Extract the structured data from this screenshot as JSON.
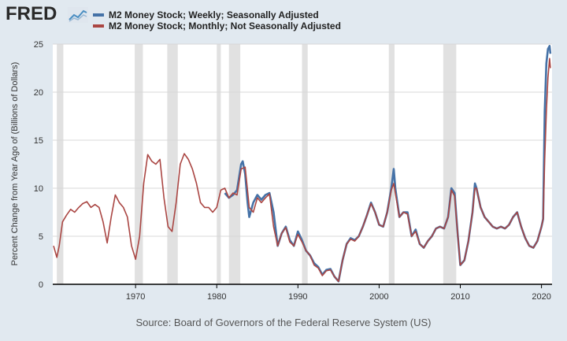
{
  "header": {
    "logo_text": "FRED"
  },
  "chart_data": {
    "type": "line",
    "title": "",
    "xlabel": "",
    "ylabel": "Percent Change from Year Ago of (Billions of Dollars)",
    "xlim": [
      1959.8,
      2021.3
    ],
    "ylim": [
      0,
      25
    ],
    "xticks": [
      1970,
      1980,
      1990,
      2000,
      2010,
      2020
    ],
    "yticks": [
      0,
      5,
      10,
      15,
      20,
      25
    ],
    "grid": true,
    "legend_position": "top-left",
    "recessions": [
      [
        1960.3,
        1961.1
      ],
      [
        1969.9,
        1970.9
      ],
      [
        1973.9,
        1975.2
      ],
      [
        1980.0,
        1980.5
      ],
      [
        1981.5,
        1982.9
      ],
      [
        1990.5,
        1991.2
      ],
      [
        2001.2,
        2001.9
      ],
      [
        2007.9,
        2009.5
      ]
    ],
    "series": [
      {
        "name": "M2 Money Stock; Weekly; Seasonally Adjusted",
        "color": "#4572a7",
        "x": [
          1981.0,
          1981.5,
          1982.0,
          1982.5,
          1983.0,
          1983.2,
          1983.5,
          1983.8,
          1984.0,
          1984.5,
          1985.0,
          1985.5,
          1986.0,
          1986.5,
          1987.0,
          1987.5,
          1988.0,
          1988.5,
          1989.0,
          1989.5,
          1990.0,
          1990.5,
          1991.0,
          1991.5,
          1992.0,
          1992.5,
          1993.0,
          1993.5,
          1994.0,
          1994.5,
          1995.0,
          1995.5,
          1996.0,
          1996.5,
          1997.0,
          1997.5,
          1998.0,
          1998.5,
          1999.0,
          1999.5,
          2000.0,
          2000.5,
          2001.0,
          2001.5,
          2001.8,
          2002.0,
          2002.5,
          2003.0,
          2003.5,
          2004.0,
          2004.5,
          2005.0,
          2005.5,
          2006.0,
          2006.5,
          2007.0,
          2007.5,
          2008.0,
          2008.5,
          2008.9,
          2009.3,
          2009.7,
          2010.0,
          2010.5,
          2011.0,
          2011.5,
          2011.8,
          2012.0,
          2012.5,
          2013.0,
          2013.5,
          2014.0,
          2014.5,
          2015.0,
          2015.5,
          2016.0,
          2016.5,
          2017.0,
          2017.5,
          2018.0,
          2018.5,
          2019.0,
          2019.5,
          2020.0,
          2020.2,
          2020.4,
          2020.6,
          2020.8,
          2021.0,
          2021.1
        ],
        "y": [
          9.5,
          9.0,
          9.3,
          9.8,
          12.5,
          12.8,
          11.5,
          8.5,
          7.0,
          8.5,
          9.3,
          8.8,
          9.3,
          9.5,
          7.5,
          4.0,
          5.3,
          6.0,
          4.6,
          4.0,
          5.5,
          4.6,
          3.5,
          3.0,
          2.2,
          1.8,
          1.0,
          1.5,
          1.6,
          0.8,
          0.3,
          2.5,
          4.2,
          4.8,
          4.6,
          5.0,
          6.0,
          7.2,
          8.5,
          7.5,
          6.2,
          6.0,
          7.5,
          10.0,
          12.0,
          10.0,
          7.0,
          7.5,
          7.5,
          5.0,
          5.7,
          4.2,
          3.8,
          4.5,
          5.0,
          5.8,
          6.0,
          5.8,
          7.0,
          10.0,
          9.5,
          5.0,
          2.0,
          2.5,
          4.5,
          7.5,
          10.5,
          10.0,
          8.0,
          7.0,
          6.5,
          6.0,
          5.8,
          6.0,
          5.8,
          6.2,
          7.0,
          7.5,
          6.0,
          4.8,
          4.0,
          3.8,
          4.5,
          6.0,
          6.8,
          18.0,
          23.0,
          24.5,
          24.8,
          24.0
        ]
      },
      {
        "name": "M2 Money Stock; Monthly; Not Seasonally Adjusted",
        "color": "#aa4643",
        "x": [
          1959.9,
          1960.3,
          1960.6,
          1961.0,
          1961.5,
          1962.0,
          1962.5,
          1963.0,
          1963.5,
          1964.0,
          1964.5,
          1965.0,
          1965.5,
          1966.0,
          1966.5,
          1967.0,
          1967.5,
          1968.0,
          1968.5,
          1969.0,
          1969.5,
          1970.0,
          1970.5,
          1971.0,
          1971.5,
          1972.0,
          1972.5,
          1973.0,
          1973.5,
          1974.0,
          1974.5,
          1975.0,
          1975.5,
          1976.0,
          1976.5,
          1977.0,
          1977.5,
          1978.0,
          1978.5,
          1979.0,
          1979.5,
          1980.0,
          1980.5,
          1981.0,
          1981.5,
          1982.0,
          1982.5,
          1983.0,
          1983.5,
          1984.0,
          1984.5,
          1985.0,
          1985.5,
          1986.0,
          1986.5,
          1987.0,
          1987.5,
          1988.0,
          1988.5,
          1989.0,
          1989.5,
          1990.0,
          1990.5,
          1991.0,
          1991.5,
          1992.0,
          1992.5,
          1993.0,
          1993.5,
          1994.0,
          1994.5,
          1995.0,
          1995.5,
          1996.0,
          1996.5,
          1997.0,
          1997.5,
          1998.0,
          1998.5,
          1999.0,
          1999.5,
          2000.0,
          2000.5,
          2001.0,
          2001.5,
          2001.8,
          2002.0,
          2002.5,
          2003.0,
          2003.5,
          2004.0,
          2004.5,
          2005.0,
          2005.5,
          2006.0,
          2006.5,
          2007.0,
          2007.5,
          2008.0,
          2008.5,
          2008.9,
          2009.3,
          2009.7,
          2010.0,
          2010.5,
          2011.0,
          2011.5,
          2011.8,
          2012.0,
          2012.5,
          2013.0,
          2013.5,
          2014.0,
          2014.5,
          2015.0,
          2015.5,
          2016.0,
          2016.5,
          2017.0,
          2017.5,
          2018.0,
          2018.5,
          2019.0,
          2019.5,
          2020.0,
          2020.2,
          2020.4,
          2020.6,
          2020.8,
          2021.0,
          2021.1
        ],
        "y": [
          4.0,
          2.8,
          4.0,
          6.5,
          7.2,
          7.8,
          7.5,
          8.0,
          8.4,
          8.6,
          8.0,
          8.3,
          8.0,
          6.5,
          4.3,
          7.0,
          9.3,
          8.5,
          8.0,
          7.0,
          4.0,
          2.6,
          5.0,
          10.5,
          13.5,
          12.8,
          12.5,
          13.0,
          9.0,
          6.0,
          5.5,
          8.5,
          12.5,
          13.6,
          13.0,
          12.0,
          10.5,
          8.5,
          8.0,
          8.0,
          7.5,
          8.0,
          9.8,
          10.0,
          9.0,
          9.5,
          9.3,
          12.0,
          12.2,
          8.0,
          7.5,
          9.0,
          8.5,
          9.0,
          9.4,
          6.0,
          4.0,
          5.3,
          5.9,
          4.4,
          4.0,
          5.2,
          4.4,
          3.5,
          3.0,
          2.0,
          1.7,
          0.9,
          1.4,
          1.5,
          0.8,
          0.3,
          2.5,
          4.2,
          4.7,
          4.5,
          5.0,
          6.0,
          7.2,
          8.4,
          7.5,
          6.2,
          6.0,
          7.5,
          9.8,
          10.5,
          9.5,
          7.0,
          7.5,
          7.3,
          5.0,
          5.5,
          4.2,
          3.8,
          4.5,
          5.0,
          5.8,
          6.0,
          5.8,
          7.0,
          9.8,
          9.2,
          5.0,
          2.0,
          2.5,
          4.5,
          7.5,
          10.0,
          10.0,
          8.0,
          7.0,
          6.5,
          6.0,
          5.8,
          6.0,
          5.8,
          6.2,
          7.0,
          7.5,
          6.0,
          4.8,
          4.0,
          3.8,
          4.5,
          6.0,
          6.8,
          13.0,
          18.0,
          21.5,
          23.5,
          22.5
        ]
      }
    ]
  },
  "footer": {
    "source": "Source: Board of Governors of the Federal Reserve System (US)"
  }
}
